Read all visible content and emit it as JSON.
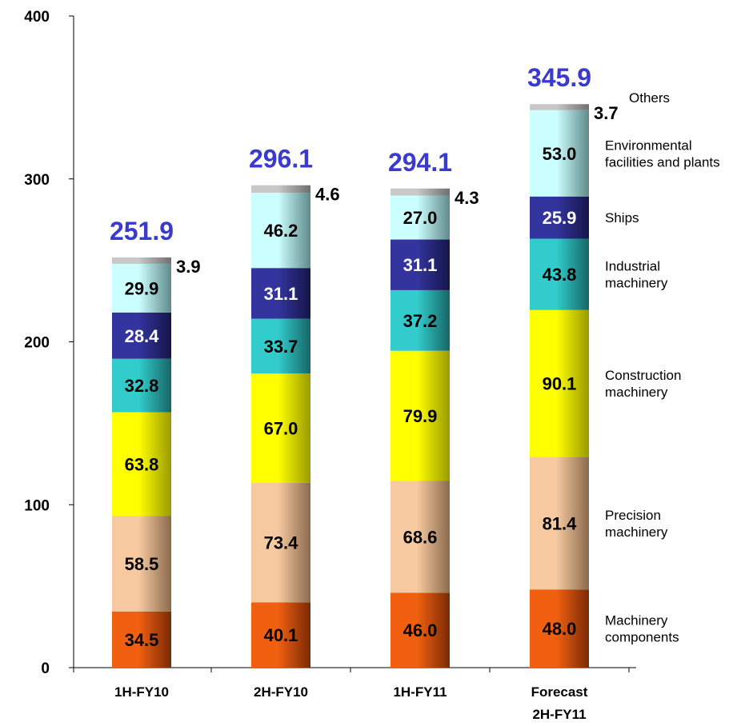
{
  "chart_data": {
    "type": "bar",
    "stacked": true,
    "categories": [
      "1H-FY10",
      "2H-FY10",
      "1H-FY11",
      "Forecast\n2H-FY11"
    ],
    "ylim": [
      0,
      400
    ],
    "yticks": [
      0,
      100,
      200,
      300,
      400
    ],
    "grid": false,
    "series": [
      {
        "name": "Machinery components",
        "values": [
          34.5,
          40.1,
          46.0,
          48.0
        ],
        "color": "#f06010",
        "color_dark": "#7a2a05",
        "text_color": "#000000"
      },
      {
        "name": "Precision machinery",
        "values": [
          58.5,
          73.4,
          68.6,
          81.4
        ],
        "color": "#f7c9a0",
        "color_dark": "#8a6a4c",
        "text_color": "#000000"
      },
      {
        "name": "Construction machinery",
        "values": [
          63.8,
          67.0,
          79.9,
          90.1
        ],
        "color": "#ffff00",
        "color_dark": "#9a9a00",
        "text_color": "#000000"
      },
      {
        "name": "Industrial machinery",
        "values": [
          32.8,
          33.7,
          37.2,
          43.8
        ],
        "color": "#33cccc",
        "color_dark": "#166666",
        "text_color": "#000000"
      },
      {
        "name": "Ships",
        "values": [
          28.4,
          31.1,
          31.1,
          25.9
        ],
        "color": "#34349e",
        "color_dark": "#15154a",
        "text_color": "#ffffff"
      },
      {
        "name": "Environmental facilities and plants",
        "values": [
          29.9,
          46.2,
          27.0,
          53.0
        ],
        "color": "#ccffff",
        "color_dark": "#5f8a8a",
        "text_color": "#000000"
      },
      {
        "name": "Others",
        "values": [
          3.9,
          4.6,
          4.3,
          3.7
        ],
        "color": "#c8c8c8",
        "color_dark": "#6e6e6e",
        "text_color": "#000000"
      }
    ],
    "others_labels": [
      "3.9",
      "4.6",
      "4.3",
      "3.7"
    ],
    "totals": [
      "251.9",
      "296.1",
      "294.1",
      "345.9"
    ],
    "legend": [
      {
        "lines": [
          "Others"
        ]
      },
      {
        "lines": [
          "Environmental",
          "facilities and plants"
        ]
      },
      {
        "lines": [
          "Ships"
        ]
      },
      {
        "lines": [
          "Industrial",
          "machinery"
        ]
      },
      {
        "lines": [
          "Construction",
          "machinery"
        ]
      },
      {
        "lines": [
          "Precision",
          "machinery"
        ]
      },
      {
        "lines": [
          "Machinery",
          "components"
        ]
      }
    ]
  }
}
